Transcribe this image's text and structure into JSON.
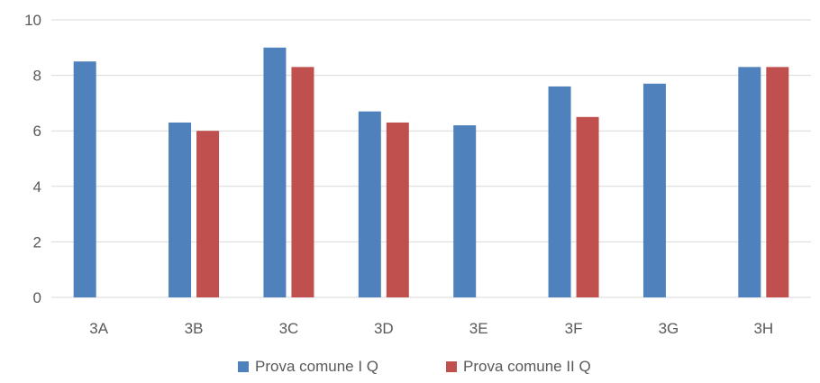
{
  "chart_data": {
    "type": "bar",
    "categories": [
      "3A",
      "3B",
      "3C",
      "3D",
      "3E",
      "3F",
      "3G",
      "3H"
    ],
    "series": [
      {
        "name": "Prova comune I Q",
        "color": "#4f81bd",
        "values": [
          8.5,
          6.3,
          9.0,
          6.7,
          6.2,
          7.6,
          7.7,
          8.3
        ]
      },
      {
        "name": "Prova comune II Q",
        "color": "#c0504d",
        "values": [
          null,
          6.0,
          8.3,
          6.3,
          null,
          6.5,
          null,
          8.3
        ]
      }
    ],
    "ylim": [
      0,
      10
    ],
    "yticks": [
      0,
      2,
      4,
      6,
      8,
      10
    ],
    "grid": true,
    "legend_position": "bottom",
    "gridline_color": "#d9d9d9"
  }
}
